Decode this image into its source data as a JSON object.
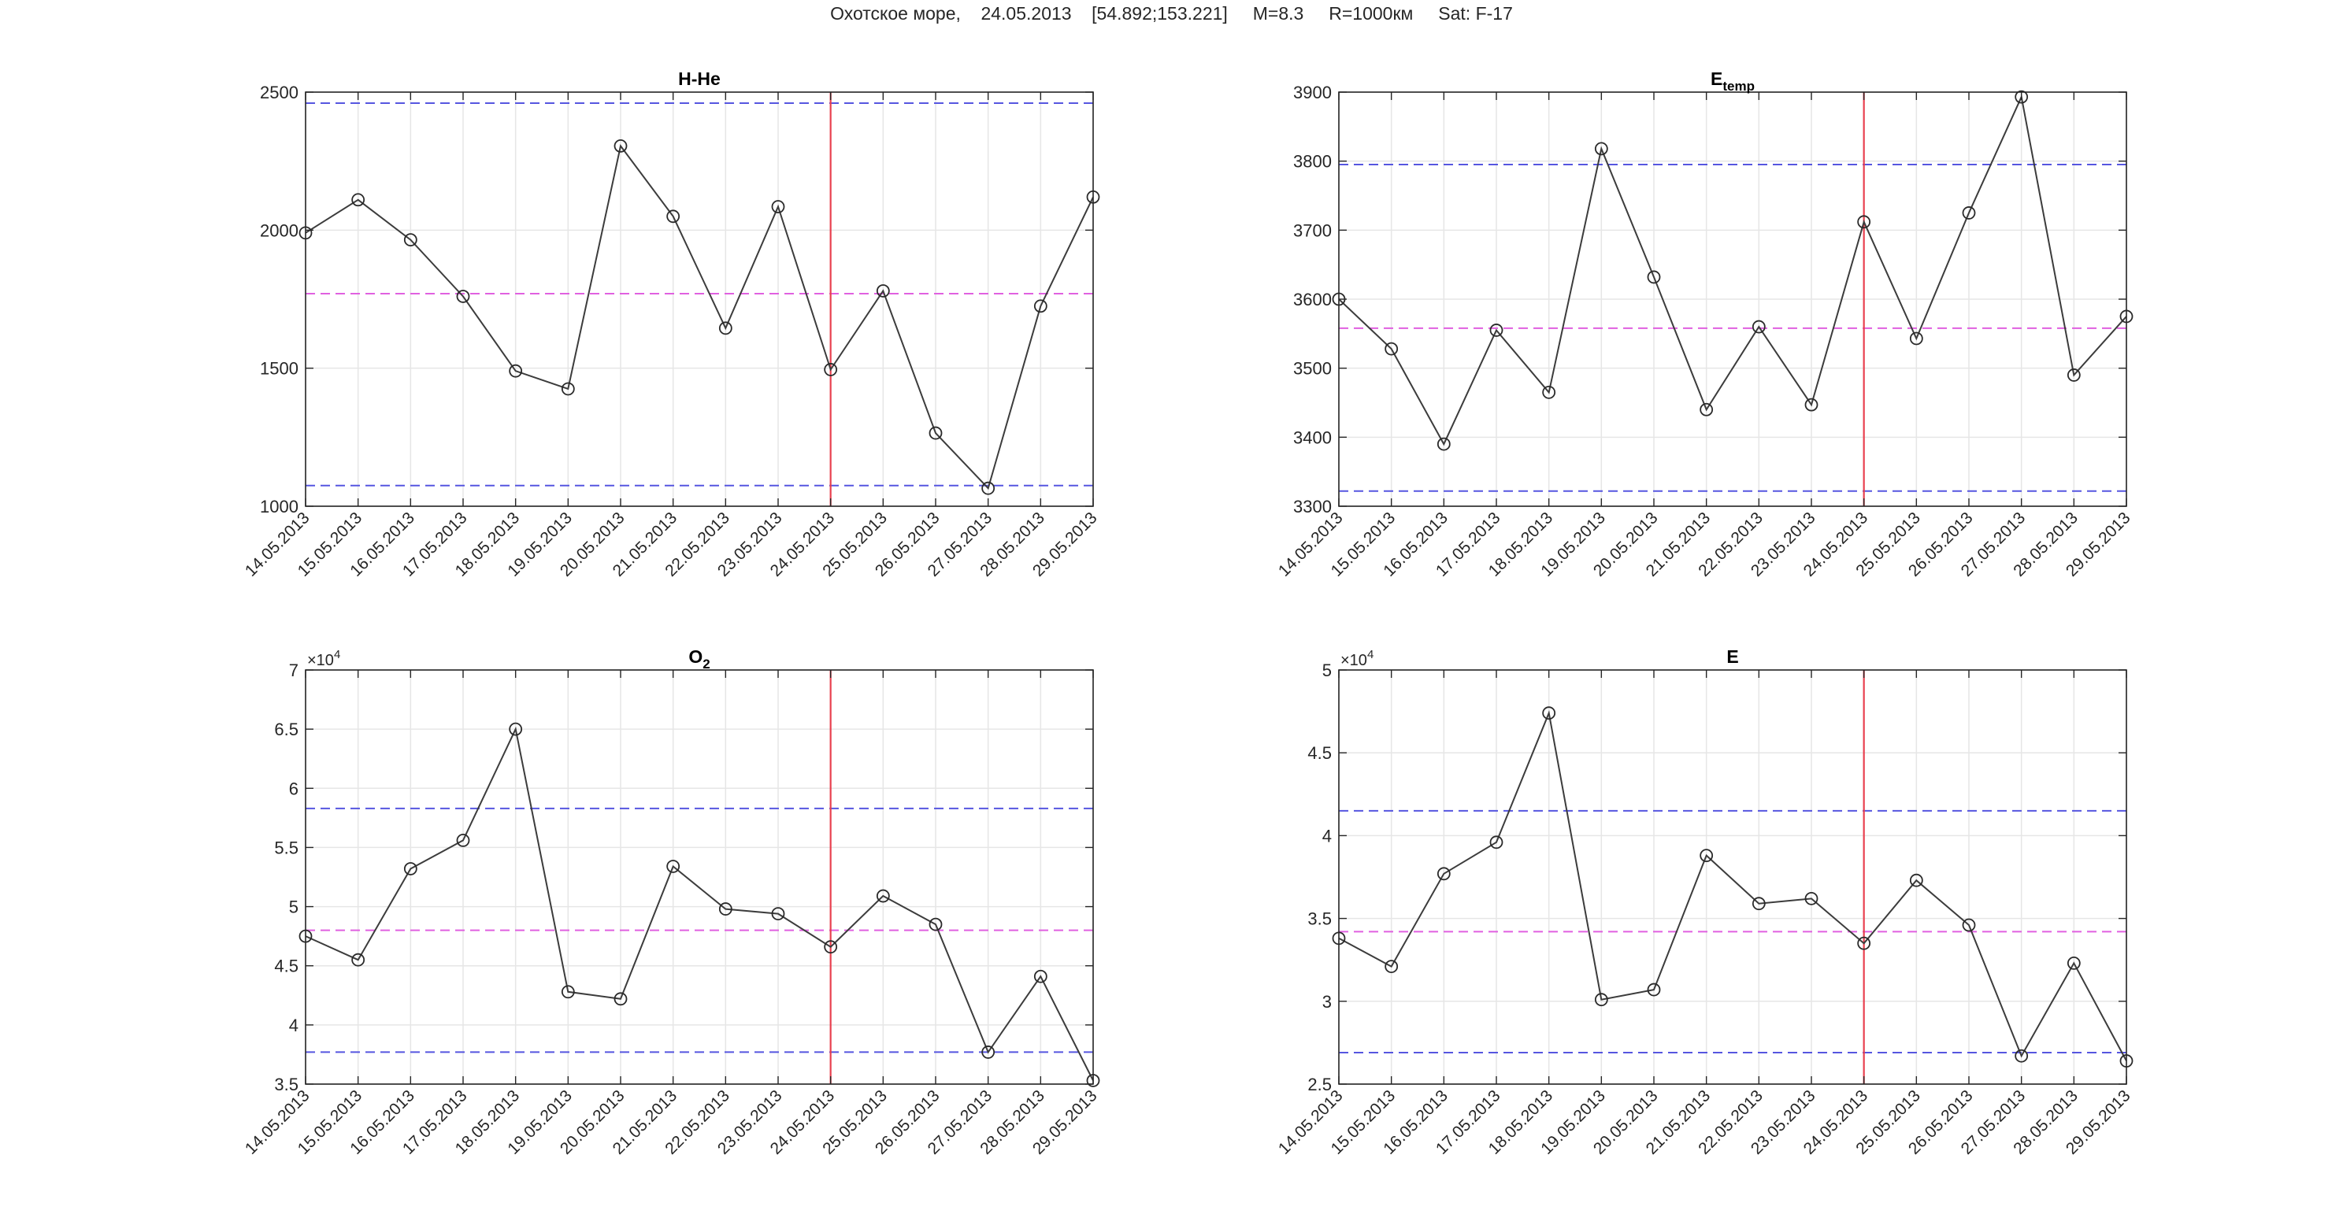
{
  "figure": {
    "title": "Охотское море,    24.05.2013    [54.892;153.221]     M=8.3     R=1000км     Sat: F-17"
  },
  "chart_data": [
    {
      "type": "line",
      "title": "H-He",
      "title_subscript": "",
      "exponent_label": "",
      "categories": [
        "14.05.2013",
        "15.05.2013",
        "16.05.2013",
        "17.05.2013",
        "18.05.2013",
        "19.05.2013",
        "20.05.2013",
        "21.05.2013",
        "22.05.2013",
        "23.05.2013",
        "24.05.2013",
        "25.05.2013",
        "26.05.2013",
        "27.05.2013",
        "28.05.2013",
        "29.05.2013"
      ],
      "values": [
        1990,
        2110,
        1965,
        1760,
        1490,
        1425,
        2305,
        2050,
        1645,
        2085,
        1495,
        1780,
        1265,
        1065,
        1725,
        2120
      ],
      "ylim": [
        1000,
        2500
      ],
      "yticks": [
        1000,
        1500,
        2000,
        2500
      ],
      "ytick_labels": [
        "1000",
        "1500",
        "2000",
        "2500"
      ],
      "grid": true,
      "marker": "circle",
      "line_color": "#3c3c3c",
      "event_index": 10,
      "event_color": "#e8404f",
      "reference_lines": [
        {
          "value": 2460,
          "color": "#5656e0"
        },
        {
          "value": 1770,
          "color": "#e060e0"
        },
        {
          "value": 1075,
          "color": "#5656e0"
        }
      ]
    },
    {
      "type": "line",
      "title": "E",
      "title_subscript": "temp",
      "exponent_label": "",
      "categories": [
        "14.05.2013",
        "15.05.2013",
        "16.05.2013",
        "17.05.2013",
        "18.05.2013",
        "19.05.2013",
        "20.05.2013",
        "21.05.2013",
        "22.05.2013",
        "23.05.2013",
        "24.05.2013",
        "25.05.2013",
        "26.05.2013",
        "27.05.2013",
        "28.05.2013",
        "29.05.2013"
      ],
      "values": [
        3600,
        3528,
        3390,
        3555,
        3465,
        3818,
        3632,
        3440,
        3560,
        3447,
        3712,
        3543,
        3725,
        3893,
        3490,
        3575
      ],
      "ylim": [
        3300,
        3900
      ],
      "yticks": [
        3300,
        3400,
        3500,
        3600,
        3700,
        3800,
        3900
      ],
      "ytick_labels": [
        "3300",
        "3400",
        "3500",
        "3600",
        "3700",
        "3800",
        "3900"
      ],
      "grid": true,
      "marker": "circle",
      "line_color": "#3c3c3c",
      "event_index": 10,
      "event_color": "#e8404f",
      "reference_lines": [
        {
          "value": 3795,
          "color": "#5656e0"
        },
        {
          "value": 3558,
          "color": "#e060e0"
        },
        {
          "value": 3322,
          "color": "#5656e0"
        }
      ]
    },
    {
      "type": "line",
      "title": "O",
      "title_subscript": "2",
      "exponent_label": "×10",
      "exponent_power": "4",
      "categories": [
        "14.05.2013",
        "15.05.2013",
        "16.05.2013",
        "17.05.2013",
        "18.05.2013",
        "19.05.2013",
        "20.05.2013",
        "21.05.2013",
        "22.05.2013",
        "23.05.2013",
        "24.05.2013",
        "25.05.2013",
        "26.05.2013",
        "27.05.2013",
        "28.05.2013",
        "29.05.2013"
      ],
      "values": [
        47500,
        45500,
        53200,
        55600,
        65000,
        42800,
        42200,
        53400,
        49800,
        49400,
        46600,
        50900,
        48500,
        37700,
        44100,
        35300
      ],
      "ylim": [
        35000,
        70000
      ],
      "yticks": [
        35000,
        40000,
        45000,
        50000,
        55000,
        60000,
        65000,
        70000
      ],
      "ytick_labels": [
        "3.5",
        "4",
        "4.5",
        "5",
        "5.5",
        "6",
        "6.5",
        "7"
      ],
      "grid": true,
      "marker": "circle",
      "line_color": "#3c3c3c",
      "event_index": 10,
      "event_color": "#e8404f",
      "reference_lines": [
        {
          "value": 58300,
          "color": "#5656e0"
        },
        {
          "value": 48000,
          "color": "#e060e0"
        },
        {
          "value": 37700,
          "color": "#5656e0"
        }
      ]
    },
    {
      "type": "line",
      "title": "E",
      "title_subscript": "",
      "exponent_label": "×10",
      "exponent_power": "4",
      "categories": [
        "14.05.2013",
        "15.05.2013",
        "16.05.2013",
        "17.05.2013",
        "18.05.2013",
        "19.05.2013",
        "20.05.2013",
        "21.05.2013",
        "22.05.2013",
        "23.05.2013",
        "24.05.2013",
        "25.05.2013",
        "26.05.2013",
        "27.05.2013",
        "28.05.2013",
        "29.05.2013"
      ],
      "values": [
        33800,
        32100,
        37700,
        39600,
        47400,
        30100,
        30700,
        38800,
        35900,
        36200,
        33500,
        37300,
        34600,
        26700,
        32300,
        26400
      ],
      "ylim": [
        25000,
        50000
      ],
      "yticks": [
        25000,
        30000,
        35000,
        40000,
        45000,
        50000
      ],
      "ytick_labels": [
        "2.5",
        "3",
        "3.5",
        "4",
        "4.5",
        "5"
      ],
      "grid": true,
      "marker": "circle",
      "line_color": "#3c3c3c",
      "event_index": 10,
      "event_color": "#e8404f",
      "reference_lines": [
        {
          "value": 41500,
          "color": "#5656e0"
        },
        {
          "value": 34200,
          "color": "#e060e0"
        },
        {
          "value": 26900,
          "color": "#5656e0"
        }
      ]
    }
  ]
}
